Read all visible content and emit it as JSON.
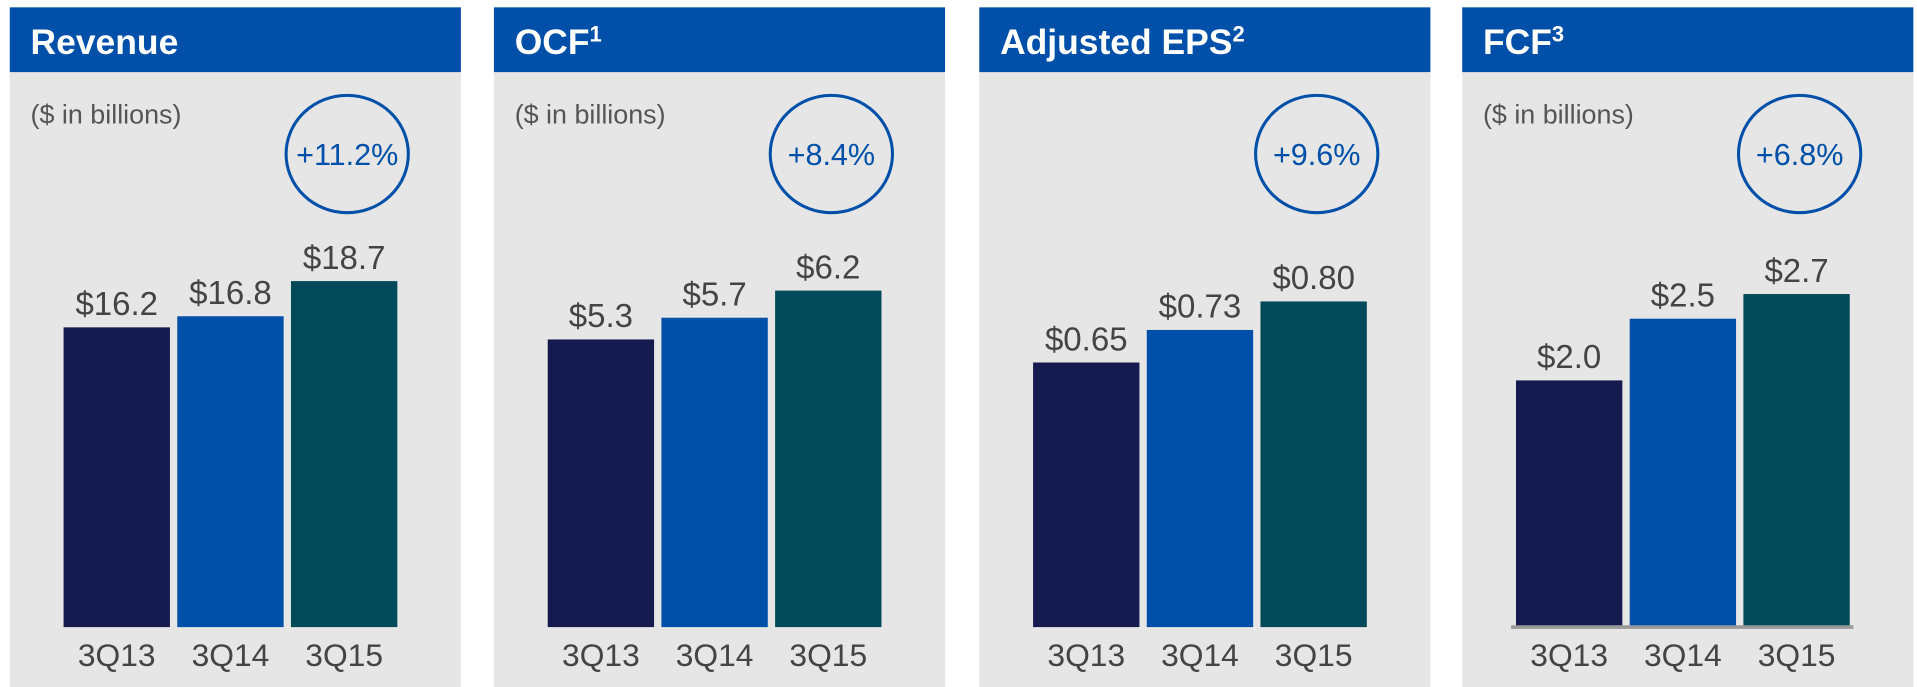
{
  "chart_data": [
    {
      "type": "bar",
      "title": "Revenue",
      "subtitle": "($ in billions)",
      "annotation": "+11.2%",
      "categories": [
        "3Q13",
        "3Q14",
        "3Q15"
      ],
      "values": [
        16.2,
        16.8,
        18.7
      ],
      "value_labels": [
        "$16.2",
        "$16.8",
        "$18.7"
      ],
      "colors": [
        "#151a4f",
        "#0050aa",
        "#004a5a"
      ],
      "ylim": [
        0,
        22
      ]
    },
    {
      "type": "bar",
      "title": "OCF",
      "title_superscript": "1",
      "subtitle": "($ in billions)",
      "annotation": "+8.4%",
      "categories": [
        "3Q13",
        "3Q14",
        "3Q15"
      ],
      "values": [
        5.3,
        5.7,
        6.2
      ],
      "value_labels": [
        "$5.3",
        "$5.7",
        "$6.2"
      ],
      "colors": [
        "#151a4f",
        "#0050aa",
        "#004a5a"
      ],
      "ylim": [
        0,
        7.5
      ]
    },
    {
      "type": "bar",
      "title": "Adjusted EPS",
      "title_superscript": "2",
      "annotation": "+9.6%",
      "categories": [
        "3Q13",
        "3Q14",
        "3Q15"
      ],
      "values": [
        0.65,
        0.73,
        0.8
      ],
      "value_labels": [
        "$0.65",
        "$0.73",
        "$0.80"
      ],
      "colors": [
        "#151a4f",
        "#0050aa",
        "#004a5a"
      ],
      "ylim": [
        0,
        1
      ]
    },
    {
      "type": "bar",
      "title": "FCF",
      "title_superscript": "3",
      "subtitle": "($ in billions)",
      "annotation": "+6.8%",
      "categories": [
        "3Q13",
        "3Q14",
        "3Q15"
      ],
      "values": [
        2.0,
        2.5,
        2.7
      ],
      "value_labels": [
        "$2.0",
        "$2.5",
        "$2.7"
      ],
      "colors": [
        "#151a4f",
        "#0050aa",
        "#004a5a"
      ],
      "ylim": [
        0,
        3.3
      ],
      "baseline": true
    }
  ]
}
